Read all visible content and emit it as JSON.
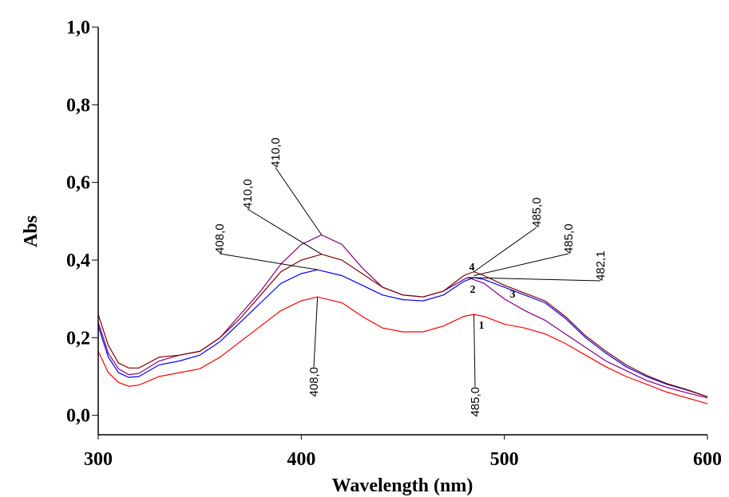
{
  "chart_data": {
    "type": "line",
    "title": "",
    "xlabel": "Wavelength (nm)",
    "ylabel": "Abs",
    "xlim": [
      300,
      600
    ],
    "ylim": [
      -0.05,
      1.0
    ],
    "xticks": [
      "300",
      "400",
      "500",
      "600"
    ],
    "xtick_values": [
      300,
      400,
      500,
      600
    ],
    "yticks": [
      "0,0",
      "0,2",
      "0,4",
      "0,6",
      "0,8",
      "1,0"
    ],
    "ytick_values": [
      0,
      0.2,
      0.4,
      0.6,
      0.8,
      1.0
    ],
    "grid": false,
    "series": [
      {
        "name": "1",
        "color": "#ff0000",
        "x": [
          300,
          305,
          310,
          315,
          320,
          330,
          340,
          350,
          360,
          370,
          380,
          390,
          400,
          408,
          420,
          430,
          440,
          450,
          460,
          470,
          480,
          485,
          490,
          500,
          510,
          520,
          530,
          540,
          550,
          560,
          570,
          580,
          590,
          600
        ],
        "y": [
          0.165,
          0.11,
          0.085,
          0.075,
          0.078,
          0.1,
          0.11,
          0.12,
          0.15,
          0.19,
          0.23,
          0.27,
          0.295,
          0.305,
          0.29,
          0.255,
          0.225,
          0.215,
          0.215,
          0.23,
          0.255,
          0.26,
          0.255,
          0.235,
          0.225,
          0.21,
          0.185,
          0.155,
          0.125,
          0.1,
          0.08,
          0.06,
          0.045,
          0.03
        ]
      },
      {
        "name": "2",
        "color": "#0000ff",
        "x": [
          300,
          305,
          310,
          315,
          320,
          330,
          340,
          350,
          360,
          370,
          380,
          390,
          400,
          408,
          420,
          430,
          440,
          450,
          460,
          470,
          480,
          485,
          490,
          500,
          510,
          520,
          530,
          540,
          550,
          560,
          570,
          580,
          590,
          600
        ],
        "y": [
          0.23,
          0.15,
          0.11,
          0.098,
          0.1,
          0.13,
          0.14,
          0.155,
          0.19,
          0.24,
          0.29,
          0.34,
          0.365,
          0.375,
          0.36,
          0.335,
          0.31,
          0.298,
          0.295,
          0.31,
          0.345,
          0.355,
          0.35,
          0.33,
          0.31,
          0.29,
          0.25,
          0.2,
          0.16,
          0.125,
          0.1,
          0.08,
          0.065,
          0.048
        ]
      },
      {
        "name": "3",
        "color": "#800080",
        "x": [
          300,
          305,
          310,
          315,
          320,
          330,
          340,
          350,
          360,
          370,
          380,
          390,
          400,
          410,
          420,
          430,
          440,
          450,
          460,
          470,
          480,
          482.1,
          490,
          500,
          510,
          520,
          530,
          540,
          550,
          560,
          570,
          580,
          590,
          600
        ],
        "y": [
          0.24,
          0.16,
          0.12,
          0.105,
          0.108,
          0.14,
          0.155,
          0.165,
          0.2,
          0.26,
          0.32,
          0.39,
          0.44,
          0.465,
          0.44,
          0.38,
          0.33,
          0.31,
          0.305,
          0.32,
          0.35,
          0.355,
          0.34,
          0.3,
          0.27,
          0.245,
          0.21,
          0.175,
          0.14,
          0.115,
          0.09,
          0.072,
          0.058,
          0.045
        ]
      },
      {
        "name": "4",
        "color": "#800000",
        "x": [
          300,
          305,
          310,
          315,
          320,
          330,
          340,
          350,
          360,
          370,
          380,
          390,
          400,
          410,
          420,
          430,
          440,
          450,
          460,
          470,
          480,
          485,
          490,
          500,
          510,
          520,
          530,
          540,
          550,
          560,
          570,
          580,
          590,
          600
        ],
        "y": [
          0.26,
          0.18,
          0.135,
          0.122,
          0.122,
          0.15,
          0.155,
          0.165,
          0.2,
          0.25,
          0.31,
          0.37,
          0.4,
          0.415,
          0.4,
          0.365,
          0.33,
          0.31,
          0.305,
          0.32,
          0.36,
          0.37,
          0.36,
          0.335,
          0.315,
          0.295,
          0.255,
          0.205,
          0.165,
          0.13,
          0.103,
          0.082,
          0.066,
          0.048
        ]
      }
    ],
    "annotations": [
      {
        "text": "408,0",
        "series": "1",
        "x": 408,
        "y": 0.305
      },
      {
        "text": "485,0",
        "series": "1",
        "x": 485,
        "y": 0.26
      },
      {
        "text": "408,0",
        "series": "2",
        "x": 408,
        "y": 0.375
      },
      {
        "text": "410,0",
        "series": "4",
        "x": 410,
        "y": 0.415
      },
      {
        "text": "410,0",
        "series": "3",
        "x": 410,
        "y": 0.465
      },
      {
        "text": "485,0",
        "series": "4",
        "x": 485,
        "y": 0.37
      },
      {
        "text": "485,0",
        "series": "2",
        "x": 485,
        "y": 0.36
      },
      {
        "text": "482,1",
        "series": "3",
        "x": 482.1,
        "y": 0.355
      }
    ]
  }
}
